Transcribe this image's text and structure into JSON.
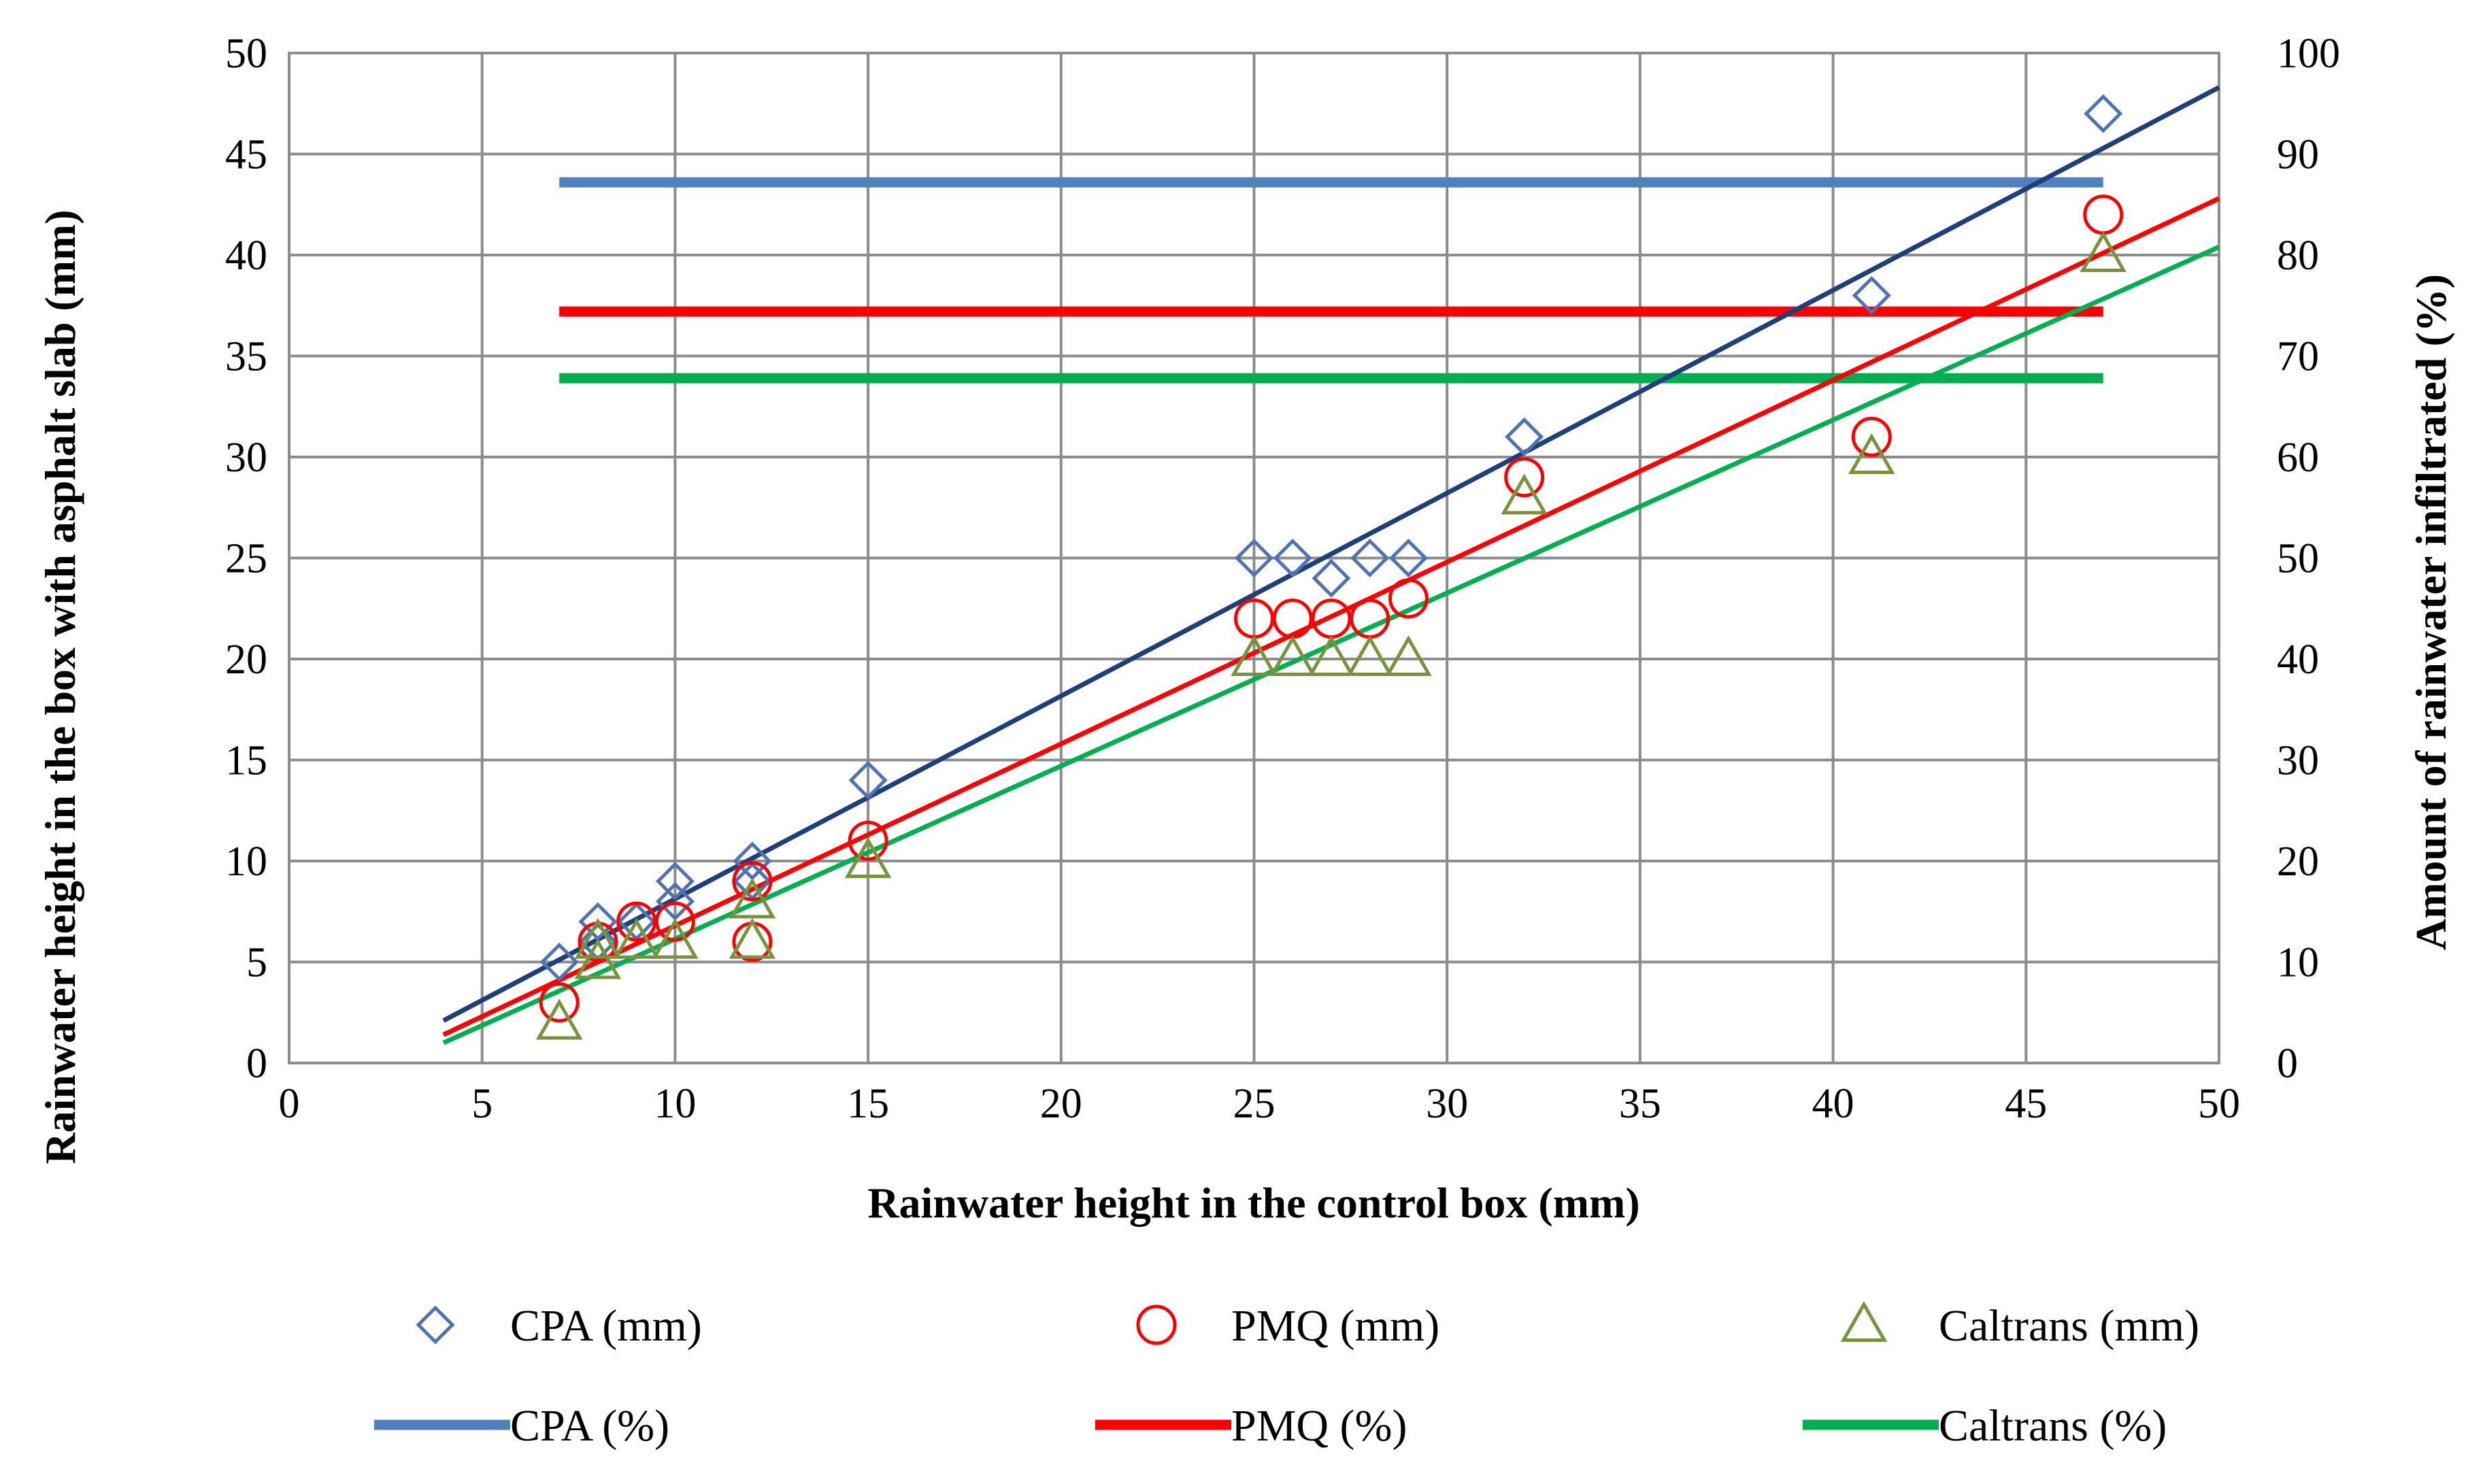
{
  "chart_data": {
    "type": "scatter",
    "title": "",
    "xlabel": "Rainwater height in the control box (mm)",
    "ylabel": "Rainwater height in the box with asphalt slab (mm)",
    "y2label": "Amount of rainwater infiltrated (%)",
    "xlim": [
      0,
      50
    ],
    "ylim": [
      0,
      50
    ],
    "y2lim": [
      0,
      100
    ],
    "x_ticks": [
      "0",
      "5",
      "10",
      "15",
      "20",
      "25",
      "30",
      "35",
      "40",
      "45",
      "50"
    ],
    "y_ticks": [
      "0",
      "5",
      "10",
      "15",
      "20",
      "25",
      "30",
      "35",
      "40",
      "45",
      "50"
    ],
    "y2_ticks": [
      "0",
      "10",
      "20",
      "30",
      "40",
      "50",
      "60",
      "70",
      "80",
      "90",
      "100"
    ],
    "grid": true,
    "legend_position": "bottom",
    "series": [
      {
        "name": "CPA (mm)",
        "kind": "points",
        "marker": "diamond",
        "color": "#4f72b0",
        "points": [
          [
            7,
            5
          ],
          [
            8,
            7
          ],
          [
            8,
            6
          ],
          [
            9,
            7
          ],
          [
            10,
            9
          ],
          [
            10,
            8
          ],
          [
            12,
            10
          ],
          [
            12,
            9
          ],
          [
            15,
            14
          ],
          [
            25,
            25
          ],
          [
            26,
            25
          ],
          [
            27,
            24
          ],
          [
            28,
            25
          ],
          [
            29,
            25
          ],
          [
            32,
            31
          ],
          [
            41,
            38
          ],
          [
            47,
            47
          ]
        ]
      },
      {
        "name": "PMQ (mm)",
        "kind": "points",
        "marker": "circle",
        "color": "#ff0000",
        "points": [
          [
            7,
            3
          ],
          [
            8,
            6
          ],
          [
            9,
            7
          ],
          [
            10,
            7
          ],
          [
            12,
            9
          ],
          [
            12,
            6
          ],
          [
            15,
            11
          ],
          [
            25,
            22
          ],
          [
            26,
            22
          ],
          [
            27,
            22
          ],
          [
            28,
            22
          ],
          [
            29,
            23
          ],
          [
            32,
            29
          ],
          [
            41,
            31
          ],
          [
            47,
            42
          ]
        ]
      },
      {
        "name": "Caltrans (mm)",
        "kind": "points",
        "marker": "triangle",
        "color": "#77933c",
        "points": [
          [
            7,
            2
          ],
          [
            8,
            5
          ],
          [
            8,
            6
          ],
          [
            9,
            6
          ],
          [
            10,
            6
          ],
          [
            12,
            8
          ],
          [
            12,
            6
          ],
          [
            15,
            10
          ],
          [
            25,
            20
          ],
          [
            26,
            20
          ],
          [
            27,
            20
          ],
          [
            28,
            20
          ],
          [
            29,
            20
          ],
          [
            32,
            28
          ],
          [
            41,
            30
          ],
          [
            47,
            40
          ]
        ]
      },
      {
        "name": "CPA (%)",
        "kind": "hline",
        "axis": "y2",
        "color": "#4f81bd",
        "x_range": [
          7,
          47
        ],
        "value": 87.2
      },
      {
        "name": "PMQ (%)",
        "kind": "hline",
        "axis": "y2",
        "color": "#ff0000",
        "x_range": [
          7,
          47
        ],
        "value": 74.4
      },
      {
        "name": "Caltrans (%)",
        "kind": "hline",
        "axis": "y2",
        "color": "#00b050",
        "x_range": [
          7,
          47
        ],
        "value": 67.8
      }
    ],
    "trendlines": [
      {
        "series": "CPA (mm)",
        "color": "#1f3f7a",
        "start": [
          4,
          2.1
        ],
        "end": [
          50,
          48.3
        ]
      },
      {
        "series": "PMQ (mm)",
        "color": "#ff0000",
        "start": [
          4,
          1.4
        ],
        "end": [
          50,
          42.8
        ]
      },
      {
        "series": "Caltrans (mm)",
        "color": "#00b050",
        "start": [
          4,
          1.0
        ],
        "end": [
          50,
          40.4
        ]
      }
    ],
    "legend": [
      {
        "label": "CPA (mm)",
        "symbol": "diamond",
        "color": "#4f72b0"
      },
      {
        "label": "PMQ (mm)",
        "symbol": "circle",
        "color": "#ff0000"
      },
      {
        "label": "Caltrans (mm)",
        "symbol": "triangle",
        "color": "#77933c"
      },
      {
        "label": "CPA (%)",
        "symbol": "line",
        "color": "#4f81bd"
      },
      {
        "label": "PMQ (%)",
        "symbol": "line",
        "color": "#ff0000"
      },
      {
        "label": "Caltrans (%)",
        "symbol": "line",
        "color": "#00b050"
      }
    ]
  }
}
